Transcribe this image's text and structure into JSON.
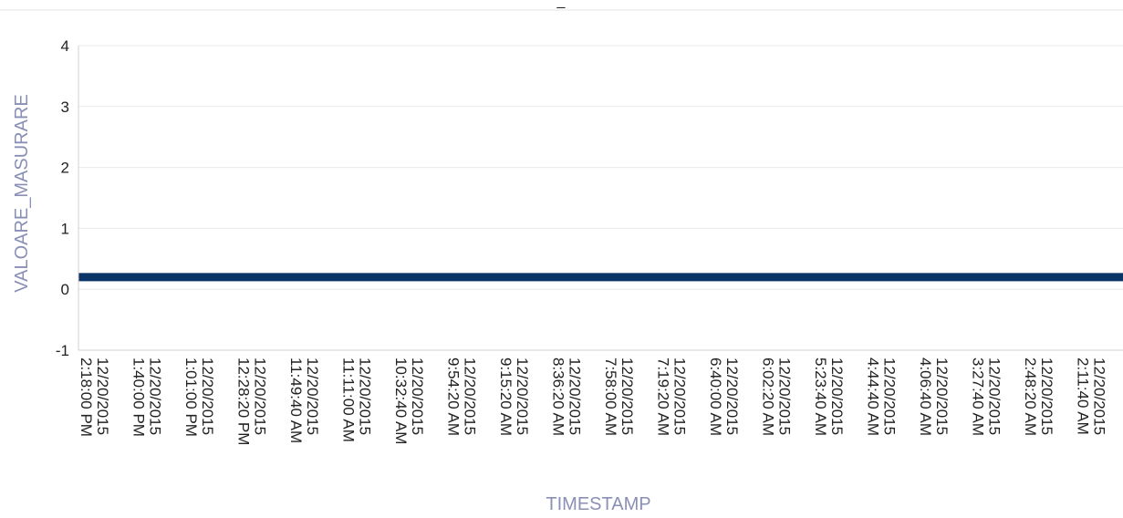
{
  "chart_data": {
    "type": "line",
    "title": "_",
    "xlabel": "TIMESTAMP",
    "ylabel": "VALOARE_MASURARE",
    "ylim": [
      -1,
      4
    ],
    "yticks": [
      4,
      3,
      2,
      1,
      0,
      -1
    ],
    "grid": true,
    "x": [
      [
        "12/20/2015",
        "2:18:00 PM"
      ],
      [
        "12/20/2015",
        "1:40:00 PM"
      ],
      [
        "12/20/2015",
        "1:01:00 PM"
      ],
      [
        "12/20/2015",
        "12:28:20 PM"
      ],
      [
        "12/20/2015",
        "11:49:40 AM"
      ],
      [
        "12/20/2015",
        "11:11:00 AM"
      ],
      [
        "12/20/2015",
        "10:32:40 AM"
      ],
      [
        "12/20/2015",
        "9:54:20 AM"
      ],
      [
        "12/20/2015",
        "9:15:20 AM"
      ],
      [
        "12/20/2015",
        "8:36:20 AM"
      ],
      [
        "12/20/2015",
        "7:58:00 AM"
      ],
      [
        "12/20/2015",
        "7:19:20 AM"
      ],
      [
        "12/20/2015",
        "6:40:00 AM"
      ],
      [
        "12/20/2015",
        "6:02:20 AM"
      ],
      [
        "12/20/2015",
        "5:23:40 AM"
      ],
      [
        "12/20/2015",
        "4:44:40 AM"
      ],
      [
        "12/20/2015",
        "4:06:40 AM"
      ],
      [
        "12/20/2015",
        "3:27:40 AM"
      ],
      [
        "12/20/2015",
        "2:48:20 AM"
      ],
      [
        "12/20/2015",
        "2:11:40 AM"
      ]
    ],
    "series": [
      {
        "color": "#0b3566",
        "values": [
          0.2,
          0.2,
          0.2,
          0.2,
          0.2,
          0.2,
          0.2,
          0.2,
          0.2,
          0.2,
          0.2,
          0.2,
          0.2,
          0.2,
          0.2,
          0.2,
          0.2,
          0.2,
          0.2,
          0.2
        ]
      }
    ]
  }
}
